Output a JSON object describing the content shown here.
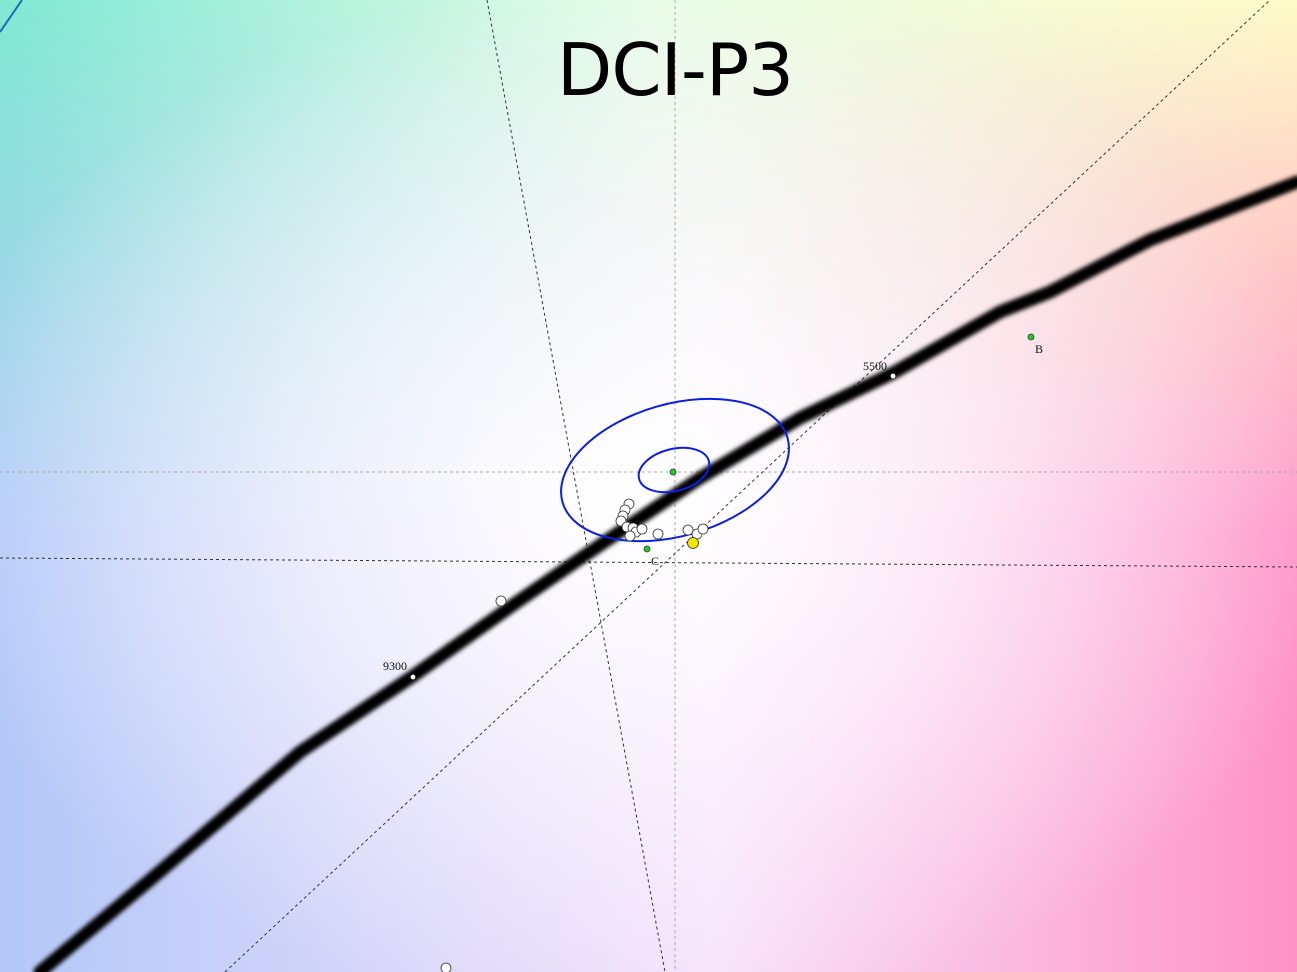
{
  "chart_data": {
    "type": "scatter",
    "title": "DCI-P3",
    "annotations": {
      "cct_5500": "5500",
      "cct_9300": "9300",
      "point_b": "B",
      "point_c": "C"
    },
    "grid": "dashed reference lines",
    "colors": {
      "locus": "#000000",
      "ellipse": "#0a1ee6",
      "reference_points": "#22cc22",
      "measured_points": "#ffffff",
      "highlight_point": "#f2e600"
    }
  }
}
